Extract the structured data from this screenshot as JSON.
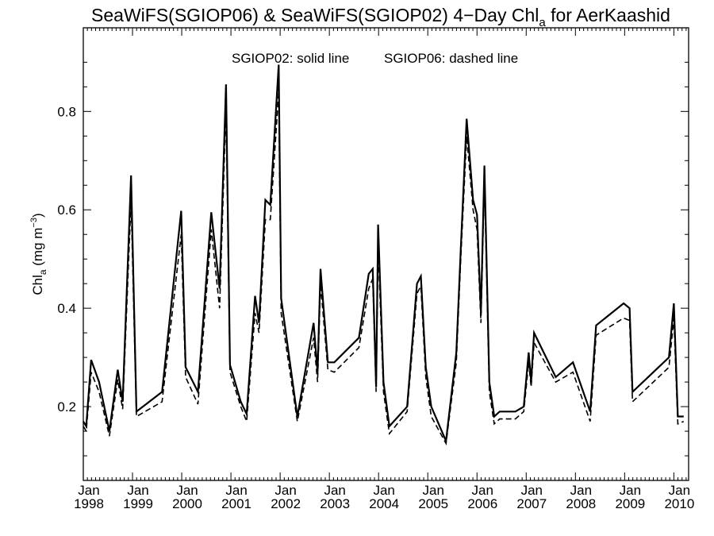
{
  "chart_data": {
    "type": "line",
    "title": {
      "prefix": "SeaWiFS(SGIOP06) & SeaWiFS(SGIOP02) 4−Day Chl",
      "subscript": "a",
      "suffix": " for AerKaashid"
    },
    "legend_text": {
      "solid": "SGIOP02: solid line",
      "dashed": "SGIOP06: dashed line"
    },
    "ylabel": {
      "main": "Chl",
      "subscript": "a",
      "units": " (mg m",
      "superscript": "−3",
      "close": ")"
    },
    "xlim": [
      1998.0,
      2010.3
    ],
    "ylim": [
      0.05,
      0.97
    ],
    "yticks": [
      0.2,
      0.4,
      0.6,
      0.8
    ],
    "ytick_labels": [
      "0.2",
      "0.4",
      "0.6",
      "0.8"
    ],
    "xticks": [
      1998,
      1999,
      2000,
      2001,
      2002,
      2003,
      2004,
      2005,
      2006,
      2007,
      2008,
      2009,
      2010
    ],
    "xtick_month": "Jan",
    "xtick_years": [
      "1998",
      "1999",
      "2000",
      "2001",
      "2002",
      "2003",
      "2004",
      "2005",
      "2006",
      "2007",
      "2008",
      "2009",
      "2010"
    ],
    "grid": false,
    "series": [
      {
        "name": "SGIOP02",
        "style": "solid",
        "color": "#000000",
        "x": [
          1998.0,
          1998.06,
          1998.16,
          1998.32,
          1998.53,
          1998.7,
          1998.8,
          1998.97,
          1999.08,
          1999.6,
          1999.99,
          2000.08,
          2000.33,
          2000.6,
          2000.77,
          2000.9,
          2000.98,
          2001.2,
          2001.32,
          2001.49,
          2001.57,
          2001.7,
          2001.8,
          2001.97,
          2002.02,
          2002.35,
          2002.68,
          2002.76,
          2002.82,
          2002.97,
          2003.1,
          2003.6,
          2003.8,
          2003.88,
          2003.95,
          2003.99,
          2004.1,
          2004.22,
          2004.58,
          2004.78,
          2004.86,
          2004.96,
          2005.07,
          2005.37,
          2005.58,
          2005.67,
          2005.79,
          2005.92,
          2006.0,
          2006.08,
          2006.15,
          2006.25,
          2006.35,
          2006.46,
          2006.78,
          2006.95,
          2007.05,
          2007.1,
          2007.16,
          2007.6,
          2007.95,
          2008.3,
          2008.42,
          2008.98,
          2009.1,
          2009.16,
          2009.9,
          2010.0,
          2010.08,
          2010.2
        ],
        "y": [
          0.17,
          0.16,
          0.295,
          0.25,
          0.15,
          0.275,
          0.21,
          0.67,
          0.19,
          0.23,
          0.598,
          0.28,
          0.23,
          0.595,
          0.44,
          0.855,
          0.285,
          0.21,
          0.185,
          0.425,
          0.37,
          0.62,
          0.61,
          0.895,
          0.42,
          0.18,
          0.37,
          0.27,
          0.48,
          0.29,
          0.29,
          0.34,
          0.47,
          0.48,
          0.24,
          0.57,
          0.25,
          0.16,
          0.2,
          0.45,
          0.465,
          0.28,
          0.2,
          0.13,
          0.31,
          0.52,
          0.785,
          0.62,
          0.59,
          0.39,
          0.69,
          0.25,
          0.18,
          0.19,
          0.19,
          0.2,
          0.31,
          0.25,
          0.35,
          0.26,
          0.29,
          0.19,
          0.365,
          0.41,
          0.4,
          0.23,
          0.3,
          0.41,
          0.18,
          0.18
        ]
      },
      {
        "name": "SGIOP06",
        "style": "dashed",
        "color": "#000000",
        "x": [
          1998.0,
          1998.06,
          1998.16,
          1998.32,
          1998.53,
          1998.7,
          1998.8,
          1998.97,
          1999.08,
          1999.6,
          1999.99,
          2000.08,
          2000.33,
          2000.6,
          2000.77,
          2000.9,
          2000.98,
          2001.2,
          2001.32,
          2001.49,
          2001.57,
          2001.7,
          2001.8,
          2001.97,
          2002.02,
          2002.35,
          2002.68,
          2002.76,
          2002.82,
          2002.97,
          2003.1,
          2003.6,
          2003.8,
          2003.88,
          2003.95,
          2003.99,
          2004.1,
          2004.22,
          2004.58,
          2004.78,
          2004.86,
          2004.96,
          2005.07,
          2005.37,
          2005.58,
          2005.67,
          2005.79,
          2005.92,
          2006.0,
          2006.08,
          2006.15,
          2006.25,
          2006.35,
          2006.46,
          2006.78,
          2006.95,
          2007.05,
          2007.1,
          2007.16,
          2007.6,
          2007.95,
          2008.3,
          2008.42,
          2008.98,
          2009.1,
          2009.16,
          2009.9,
          2010.0,
          2010.08,
          2010.2
        ],
        "y": [
          0.16,
          0.15,
          0.27,
          0.23,
          0.14,
          0.255,
          0.195,
          0.62,
          0.18,
          0.21,
          0.55,
          0.26,
          0.205,
          0.56,
          0.4,
          0.81,
          0.27,
          0.2,
          0.17,
          0.39,
          0.35,
          0.58,
          0.58,
          0.84,
          0.39,
          0.17,
          0.34,
          0.25,
          0.45,
          0.275,
          0.27,
          0.32,
          0.44,
          0.46,
          0.23,
          0.53,
          0.23,
          0.145,
          0.19,
          0.43,
          0.445,
          0.26,
          0.18,
          0.125,
          0.29,
          0.5,
          0.75,
          0.6,
          0.56,
          0.37,
          0.66,
          0.23,
          0.165,
          0.175,
          0.175,
          0.19,
          0.29,
          0.24,
          0.33,
          0.25,
          0.27,
          0.17,
          0.345,
          0.38,
          0.375,
          0.21,
          0.28,
          0.38,
          0.165,
          0.17
        ]
      }
    ]
  }
}
